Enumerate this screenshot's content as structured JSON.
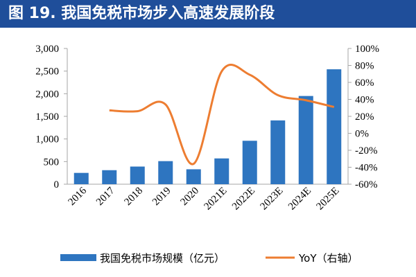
{
  "header": {
    "title": "图 19. 我国免税市场步入高速发展阶段"
  },
  "chart_data": {
    "type": "bar",
    "categories": [
      "2016",
      "2017",
      "2018",
      "2019",
      "2020",
      "2021E",
      "2022E",
      "2023E",
      "2024E",
      "2025E"
    ],
    "series": [
      {
        "name": "我国免税市场规模（亿元）",
        "type": "bar",
        "axis": "left",
        "color": "#2e75c0",
        "values": [
          250,
          310,
          390,
          510,
          330,
          570,
          960,
          1410,
          1950,
          2540
        ]
      },
      {
        "name": "YoY（右轴）",
        "type": "line",
        "axis": "right",
        "color": "#ed7d31",
        "values": [
          null,
          0.27,
          0.26,
          0.34,
          -0.36,
          0.73,
          0.69,
          0.45,
          0.39,
          0.31
        ]
      }
    ],
    "y_left": {
      "min": 0,
      "max": 3000,
      "ticks": [
        "0",
        "500",
        "1,000",
        "1,500",
        "2,000",
        "2,500",
        "3,000"
      ]
    },
    "y_right": {
      "min": -0.6,
      "max": 1.0,
      "ticks": [
        "-60%",
        "-40%",
        "-20%",
        "0%",
        "20%",
        "40%",
        "60%",
        "80%",
        "100%"
      ]
    },
    "grid": false,
    "legend_position": "bottom"
  }
}
